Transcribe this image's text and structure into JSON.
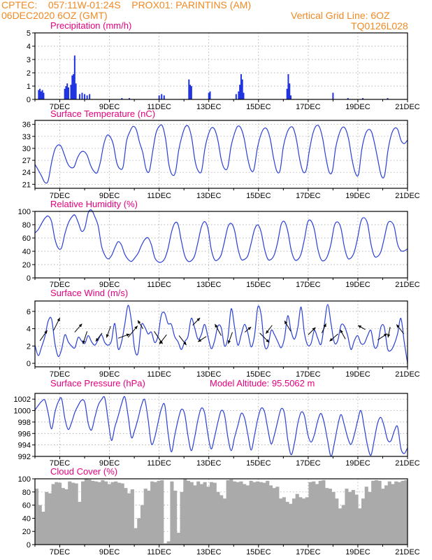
{
  "header": {
    "line1": "CPTEC:    057:11W-01:24S    PROX01: PARINTINS (AM)",
    "line2": "06DEC2020 6OZ (GMT)",
    "right1": "Vertical Grid Line: 6OZ",
    "right2": "TQ0126L028"
  },
  "colors": {
    "header": "#f08a24",
    "title": "#e6007e",
    "series": "#2a3fd6",
    "bar": "#1f32e0",
    "cloud": "#aaaaaa",
    "grid": "#9a9a9a"
  },
  "x_tick_labels": [
    "7DEC",
    "9DEC",
    "11DEC",
    "13DEC",
    "15DEC",
    "17DEC",
    "19DEC",
    "21DEC"
  ],
  "chart_data": [
    {
      "id": "precip",
      "type": "bar",
      "title": "Precipitation (mm/h)",
      "ylim": [
        0,
        5
      ],
      "yticks": [
        0,
        1,
        2,
        3,
        4,
        5
      ],
      "x_unit": "days since 06DEC2020 06Z",
      "points": [
        [
          0.15,
          0.7
        ],
        [
          0.2,
          0.8
        ],
        [
          0.25,
          0.6
        ],
        [
          0.3,
          0.7
        ],
        [
          0.35,
          0.5
        ],
        [
          1.2,
          0.8
        ],
        [
          1.25,
          1.0
        ],
        [
          1.3,
          1.2
        ],
        [
          1.35,
          0.9
        ],
        [
          1.45,
          1.1
        ],
        [
          1.5,
          1.8
        ],
        [
          1.55,
          1.9
        ],
        [
          1.6,
          3.3
        ],
        [
          1.65,
          1.2
        ],
        [
          1.8,
          0.4
        ],
        [
          1.9,
          0.5
        ],
        [
          2.0,
          0.4
        ],
        [
          2.1,
          0.3
        ],
        [
          2.2,
          0.4
        ],
        [
          3.5,
          0.1
        ],
        [
          3.8,
          0.1
        ],
        [
          5.0,
          0.3
        ],
        [
          5.1,
          0.4
        ],
        [
          5.2,
          0.3
        ],
        [
          6.2,
          1.5
        ],
        [
          6.25,
          1.1
        ],
        [
          6.3,
          1.0
        ],
        [
          7.0,
          0.5
        ],
        [
          7.05,
          0.6
        ],
        [
          8.1,
          0.4
        ],
        [
          8.2,
          0.6
        ],
        [
          8.25,
          1.1
        ],
        [
          8.3,
          1.9
        ],
        [
          8.35,
          1.5
        ],
        [
          8.4,
          0.5
        ],
        [
          10.15,
          0.8
        ],
        [
          10.2,
          1.9
        ],
        [
          10.25,
          1.2
        ],
        [
          10.3,
          0.3
        ],
        [
          12.0,
          0.5
        ],
        [
          12.6,
          0.1
        ],
        [
          13.2,
          0.1
        ],
        [
          14.2,
          0.1
        ]
      ]
    },
    {
      "id": "temp",
      "type": "line",
      "title": "Surface Temperature (nC)",
      "ylim": [
        20,
        37
      ],
      "yticks": [
        21,
        24,
        27,
        30,
        33,
        36
      ],
      "values": [
        26,
        24.6,
        23.1,
        21.5,
        21.8,
        26.1,
        29.5,
        30.8,
        30.5,
        28.4,
        26.2,
        25.2,
        25.4,
        27.6,
        29,
        29.2,
        28.2,
        25.8,
        24.3,
        23.9,
        26.5,
        30.8,
        33.2,
        32.9,
        30.9,
        26.5,
        24.9,
        25.5,
        31.7,
        34.1,
        35.5,
        34.7,
        31.5,
        28.9,
        24.8,
        24.3,
        29.1,
        33.7,
        35.5,
        35.6,
        32.2,
        25.9,
        23.4,
        24.1,
        29.6,
        33.1,
        35.4,
        35.4,
        32.4,
        26.8,
        24.3,
        24.4,
        29.9,
        33.3,
        35.1,
        34.7,
        31.9,
        27.2,
        24.9,
        25.3,
        30.5,
        33.6,
        35.5,
        35.1,
        32.5,
        27.9,
        24.7,
        24.7,
        29.8,
        33.1,
        34.9,
        34.8,
        32.3,
        27.6,
        24.3,
        24.5,
        30.4,
        33.6,
        35.2,
        35.1,
        32.2,
        27.3,
        24.2,
        24.6,
        29.6,
        33.6,
        35.6,
        35.4,
        32.6,
        27.8,
        24.1,
        24.3,
        30.1,
        33.4,
        35.2,
        34.9,
        32.2,
        27.3,
        23.9,
        23.5,
        29.7,
        33.3,
        34.7,
        34.1,
        30.9,
        26.8,
        23.1,
        23.3,
        29.4,
        33.3,
        35,
        34.7,
        32,
        31.2,
        32.1
      ]
    },
    {
      "id": "rh",
      "type": "line",
      "title": "Relative Humidity (%)",
      "ylim": [
        0,
        100
      ],
      "yticks": [
        0,
        20,
        40,
        60,
        80,
        100
      ],
      "values": [
        67.6,
        72.7,
        81.8,
        89.8,
        93,
        84.5,
        58.5,
        44.8,
        45.4,
        66.3,
        81.9,
        91,
        94.5,
        83.4,
        70.3,
        75.2,
        97.6,
        102,
        92,
        78.3,
        48.2,
        34.2,
        28.5,
        33.3,
        45.1,
        54.4,
        49.6,
        35.5,
        27.9,
        24.8,
        30.1,
        37.1,
        48.6,
        57.6,
        60.2,
        49.8,
        30.6,
        24.3,
        23.7,
        28.9,
        44,
        67.9,
        82.1,
        80.7,
        55.9,
        33.8,
        25.1,
        25.8,
        33.3,
        53.7,
        76,
        84.6,
        74.6,
        43,
        27.3,
        27.5,
        35,
        55.2,
        76.6,
        81.9,
        71.4,
        44.5,
        28.2,
        28,
        33.4,
        52.3,
        72.7,
        79.7,
        68.8,
        43.6,
        28.3,
        27.9,
        35.6,
        54.6,
        80.1,
        84.5,
        70.2,
        42.5,
        28,
        27.5,
        36.3,
        58.1,
        84,
        85.6,
        72.5,
        44.2,
        27.9,
        26.1,
        33.6,
        51.4,
        78.3,
        84.1,
        74.3,
        46.7,
        30,
        30.1,
        39.2,
        60.1,
        85.1,
        90.4,
        81.1,
        51.2,
        33.1,
        32.3,
        39.7,
        59.7,
        81.2,
        84.6,
        76.7,
        50.9,
        41,
        40.6,
        43.8
      ]
    },
    {
      "id": "wind",
      "type": "line",
      "title": "Surface Wind (m/s)",
      "ylim": [
        -0.4,
        7.2
      ],
      "yticks": [
        0,
        2,
        4,
        6
      ],
      "values": [
        2.1,
        0.9,
        1.9,
        3.1,
        4.9,
        5.1,
        2.3,
        0.8,
        1.6,
        3.3,
        2.5,
        2,
        1.8,
        3,
        2.6,
        2.3,
        3.2,
        2.5,
        2.1,
        2.7,
        3.3,
        2.4,
        2.1,
        2.6,
        4.6,
        1.7,
        2.4,
        4.5,
        6.7,
        4.9,
        1.6,
        1.2,
        4.4,
        4.2,
        3.4,
        3.6,
        2.4,
        3.2,
        5.6,
        5.8,
        4.6,
        4.5,
        3.1,
        2.5,
        1.6,
        2.5,
        3.1,
        5.2,
        4.1,
        2.8,
        3.3,
        4.5,
        3.1,
        1.7,
        2.6,
        4.3,
        4.1,
        2,
        3,
        6.3,
        4.2,
        2.1,
        3.3,
        4.5,
        3.5,
        1.9,
        3.2,
        6.5,
        5.6,
        2.1,
        1.9,
        3.8,
        3.3,
        2.5,
        1.8,
        2.9,
        5.5,
        3.7,
        2.8,
        4.1,
        6.5,
        3.5,
        2.1,
        2.3,
        3.8,
        2.9,
        2.2,
        4.5,
        6.8,
        4.6,
        2.4,
        2.6,
        4.4,
        4.3,
        3.2,
        1.6,
        2.6,
        3.2,
        2.3,
        2.3,
        3.2,
        3.8,
        1.9,
        2.1,
        4.2,
        4.2,
        1.7,
        1.5,
        2.2,
        3.4,
        5.2,
        2.5,
        0
      ],
      "arrows": [
        [
          0.2,
          2.6,
          0.7,
          1.0
        ],
        [
          0.75,
          3.8,
          0.6,
          1.2
        ],
        [
          1.6,
          3.6,
          0.7,
          0.8
        ],
        [
          2.1,
          3.7,
          -0.4,
          -1.2
        ],
        [
          2.7,
          3.5,
          -0.6,
          -0.8
        ],
        [
          3.05,
          4.3,
          -0.4,
          -1.1
        ],
        [
          3.35,
          2.9,
          1.1,
          0.4
        ],
        [
          3.75,
          3.0,
          0.9,
          1.1
        ],
        [
          4.35,
          4.0,
          -0.5,
          0.8
        ],
        [
          4.8,
          3.7,
          0.8,
          -1.2
        ],
        [
          5.3,
          3.3,
          -0.7,
          -0.9
        ],
        [
          5.8,
          3.2,
          0.7,
          -0.9
        ],
        [
          6.35,
          4.4,
          0.7,
          0.7
        ],
        [
          6.9,
          3.1,
          -0.8,
          -0.5
        ],
        [
          7.5,
          3.2,
          -0.6,
          1.1
        ],
        [
          7.95,
          3.6,
          -0.4,
          -1.1
        ],
        [
          8.45,
          3.6,
          0.6,
          0.5
        ],
        [
          9.05,
          3.5,
          0.9,
          -0.9
        ],
        [
          9.55,
          4.4,
          -0.6,
          -0.8
        ],
        [
          10.3,
          3.7,
          -0.6,
          1.0
        ],
        [
          11.0,
          3.3,
          0.7,
          0.7
        ],
        [
          11.55,
          3.5,
          0.4,
          0.9
        ],
        [
          12.2,
          3.4,
          -0.8,
          -0.7
        ],
        [
          12.5,
          2.8,
          -0.5,
          0.9
        ],
        [
          13.3,
          3.9,
          -0.7,
          0.4
        ],
        [
          13.8,
          2.7,
          0.9,
          0.6
        ],
        [
          14.3,
          4.2,
          -0.2,
          -1.0
        ],
        [
          14.85,
          3.4,
          -0.7,
          0.9
        ]
      ]
    },
    {
      "id": "pres",
      "type": "line",
      "title": "Surface Pressure (hPa)",
      "annotation": "Model Altitude: 95.5062 m",
      "ylim": [
        992,
        1003
      ],
      "yticks": [
        992,
        994,
        996,
        998,
        1000,
        1002
      ],
      "values": [
        1000.1,
        1000.9,
        1001.6,
        1001.8,
        999.5,
        996.8,
        999.7,
        1001.5,
        1002.1,
        998.6,
        996.7,
        997.9,
        999.7,
        1000.9,
        1001.8,
        1001.4,
        997.8,
        996.6,
        998.8,
        1000.9,
        1001.9,
        1002.2,
        998.3,
        994.8,
        997.1,
        999,
        1001.1,
        1002.4,
        999.1,
        995.3,
        996.6,
        998.6,
        1000.9,
        1001.9,
        998.5,
        994.2,
        995.3,
        997.9,
        1000.3,
        1001,
        996.2,
        992.8,
        995.6,
        998.3,
        1000.2,
        999.4,
        995.6,
        993,
        995.3,
        998.4,
        1000.4,
        999.6,
        995.8,
        993.3,
        995.4,
        998,
        1000,
        999.2,
        995.3,
        993,
        995.3,
        997.4,
        999.5,
        998.7,
        995.8,
        993.1,
        995.7,
        998.6,
        1000.4,
        999.8,
        996.8,
        994.2,
        995.8,
        998.2,
        1000.3,
        999.5,
        994.9,
        992.3,
        994.3,
        997.7,
        999.7,
        999.1,
        995.9,
        994.5,
        995.8,
        998.2,
        999.5,
        997.7,
        994.7,
        992,
        994.3,
        997.3,
        999.3,
        997.5,
        995.3,
        994.1,
        995.8,
        998.2,
        1000,
        997,
        993.8,
        992.2,
        994.9,
        997.8,
        998.8,
        997.2,
        994.9,
        994.7,
        996.4,
        997.2,
        993.4,
        992.5,
        993.5
      ]
    },
    {
      "id": "cloud",
      "type": "bar",
      "title": "Cloud Cover (%)",
      "ylim": [
        0,
        100
      ],
      "yticks": [
        0,
        20,
        40,
        60,
        80,
        100
      ],
      "values": [
        85,
        60,
        50,
        80,
        78,
        92,
        95,
        94,
        86,
        84,
        96,
        94,
        93,
        65,
        96,
        100,
        99,
        97,
        96,
        95,
        98,
        96,
        92,
        95,
        96,
        94,
        93,
        86,
        78,
        84,
        25,
        40,
        60,
        85,
        82,
        96,
        95,
        97,
        98,
        2,
        5,
        96,
        82,
        18,
        80,
        100,
        97,
        95,
        90,
        96,
        92,
        95,
        88,
        95,
        94,
        80,
        75,
        70,
        98,
        99,
        96,
        95,
        96,
        92,
        90,
        97,
        95,
        96,
        95,
        94,
        97,
        90,
        86,
        88,
        70,
        72,
        65,
        62,
        70,
        77,
        72,
        70,
        72,
        95,
        96,
        92,
        97,
        98,
        86,
        85,
        80,
        70,
        55,
        60,
        85,
        80,
        83,
        76,
        55,
        70,
        88,
        80,
        97,
        98,
        97,
        85,
        90,
        96,
        92,
        96,
        95,
        97,
        98
      ]
    }
  ]
}
